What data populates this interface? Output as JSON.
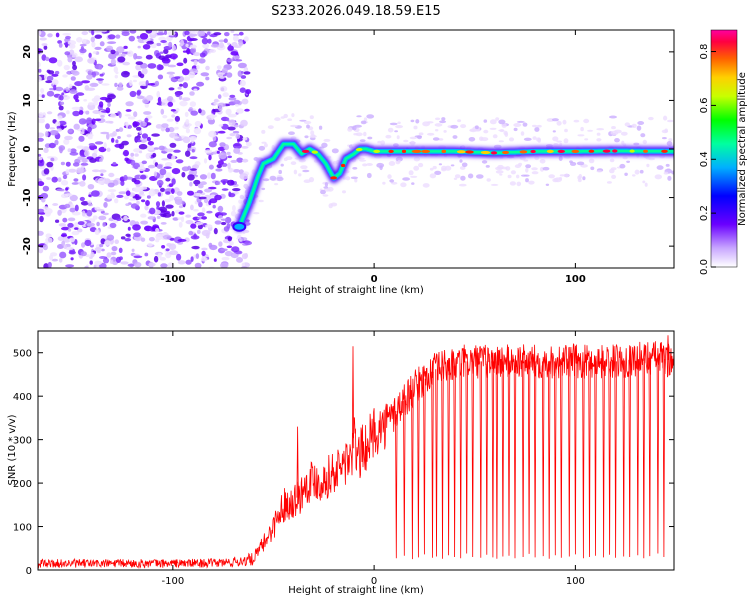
{
  "title": "S233.2026.049.18.59.E15",
  "chart_data": [
    {
      "type": "heatmap",
      "title": "S233.2026.049.18.59.E15",
      "xlabel": "Height of straight line (km)",
      "ylabel": "Frequency (Hz)",
      "xlim": [
        -167,
        149
      ],
      "ylim": [
        -24.5,
        24.5
      ],
      "xticks": [
        -100,
        0,
        100
      ],
      "yticks": [
        20,
        10,
        0,
        -10,
        -20
      ],
      "colorbar": {
        "label": "Normalized spectral amplitude",
        "range": [
          0.0,
          0.88
        ],
        "ticks": [
          0.0,
          0.2,
          0.4,
          0.6,
          0.8
        ],
        "colors": [
          "#ffffff",
          "#b07cff",
          "#6a00ff",
          "#0000ff",
          "#00c8ff",
          "#00ff64",
          "#ffff00",
          "#ff8000",
          "#ff0040",
          "#ff00a0"
        ]
      },
      "noise_region_x": [
        -167,
        -67
      ],
      "ridge": {
        "x": [
          -67,
          -62,
          -58,
          -55,
          -50,
          -45,
          -40,
          -36,
          -32,
          -28,
          -24,
          -20,
          -17,
          -14,
          -10,
          -7,
          -4,
          0,
          10,
          20,
          40,
          60,
          80,
          100,
          120,
          149
        ],
        "y": [
          -16,
          -11,
          -6,
          -3,
          -2,
          1,
          1,
          -1,
          0,
          -1,
          -3,
          -6,
          -5,
          -2,
          -1,
          0,
          0,
          -0.5,
          -0.5,
          -0.5,
          -0.5,
          -0.8,
          -0.5,
          -0.5,
          -0.4,
          -0.5
        ]
      }
    },
    {
      "type": "line",
      "xlabel": "Height of straight line (km)",
      "ylabel": "SNR (10 * v/v)",
      "xlim": [
        -167,
        149
      ],
      "ylim": [
        0,
        550
      ],
      "xticks": [
        -100,
        0,
        100
      ],
      "yticks": [
        0,
        100,
        200,
        300,
        400,
        500
      ],
      "series": [
        {
          "name": "SNR",
          "color": "#ff0000",
          "x": [
            -167,
            -140,
            -110,
            -80,
            -70,
            -60,
            -55,
            -50,
            -45,
            -40,
            -37,
            -34,
            -30,
            -26,
            -22,
            -18,
            -14,
            -11,
            -10,
            -8,
            -5,
            -2,
            0,
            5,
            10,
            15,
            20,
            25,
            30,
            35,
            40,
            45,
            50,
            60,
            70,
            80,
            90,
            100,
            110,
            120,
            130,
            140,
            149
          ],
          "mean": [
            15,
            15,
            15,
            16,
            18,
            25,
            60,
            100,
            150,
            160,
            170,
            200,
            210,
            200,
            220,
            230,
            250,
            260,
            300,
            260,
            280,
            300,
            320,
            330,
            360,
            390,
            420,
            440,
            460,
            470,
            470,
            480,
            480,
            480,
            480,
            480,
            480,
            480,
            480,
            480,
            485,
            490,
            480
          ],
          "spread": [
            10,
            10,
            10,
            10,
            12,
            15,
            20,
            30,
            40,
            40,
            45,
            50,
            50,
            45,
            50,
            50,
            60,
            60,
            60,
            60,
            60,
            60,
            60,
            55,
            50,
            45,
            40,
            40,
            40,
            40,
            40,
            40,
            40,
            40,
            40,
            40,
            40,
            40,
            40,
            40,
            40,
            40,
            40
          ],
          "peaks": [
            {
              "x": -10.5,
              "y": 515
            },
            {
              "x": -38,
              "y": 330
            },
            {
              "x": 146,
              "y": 540
            }
          ],
          "dropouts_x": [
            11,
            15,
            19,
            22,
            25,
            29,
            31,
            34,
            37,
            40,
            43,
            46,
            49,
            53,
            56,
            59,
            61,
            64,
            67,
            70,
            74,
            77,
            80,
            84,
            87,
            90,
            93,
            97,
            100,
            104,
            107,
            110,
            114,
            117,
            120,
            124,
            127,
            131,
            134,
            137,
            141,
            144
          ],
          "dropouts_y": [
            27,
            33,
            25,
            29,
            36,
            28,
            31,
            26,
            34,
            30,
            27,
            38,
            30,
            28,
            35,
            29,
            26,
            31,
            33,
            27,
            30,
            37,
            29,
            32,
            26,
            34,
            28,
            31,
            36,
            27,
            30,
            33,
            29,
            35,
            28,
            31,
            30,
            34,
            27,
            32,
            38,
            30
          ]
        }
      ]
    }
  ]
}
